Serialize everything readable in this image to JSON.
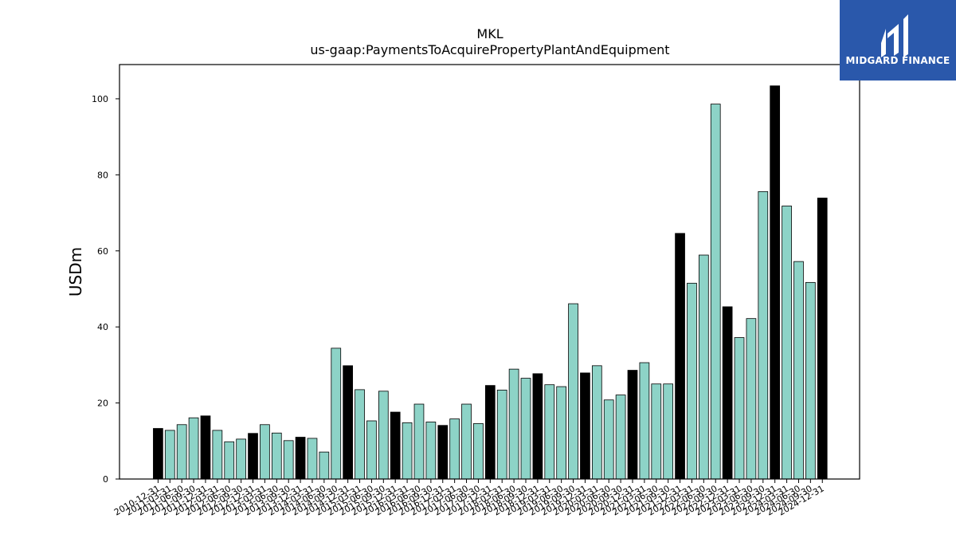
{
  "chart_data": {
    "type": "bar",
    "title": "MKL",
    "subtitle": "us-gaap:PaymentsToAcquirePropertyPlantAndEquipment",
    "xlabel": "",
    "ylabel": "USDm",
    "ylim": [
      0,
      109
    ],
    "yticks": [
      0,
      20,
      40,
      60,
      80,
      100
    ],
    "grid": false,
    "colors": {
      "annual": "#000000",
      "quarterly": "#8dd3c7",
      "edge": "#000000"
    },
    "categories": [
      "2010-12-31",
      "2011-03-31",
      "2011-06-30",
      "2011-09-30",
      "2011-12-31",
      "2012-03-31",
      "2012-06-30",
      "2012-09-30",
      "2012-12-31",
      "2013-03-31",
      "2013-06-30",
      "2013-09-30",
      "2013-12-31",
      "2014-03-31",
      "2014-06-30",
      "2014-09-30",
      "2014-12-31",
      "2015-03-31",
      "2015-06-30",
      "2015-09-30",
      "2015-12-31",
      "2016-03-31",
      "2016-06-30",
      "2016-09-30",
      "2016-12-31",
      "2017-03-31",
      "2017-06-30",
      "2017-09-30",
      "2017-12-31",
      "2018-03-31",
      "2018-06-30",
      "2018-09-30",
      "2018-12-31",
      "2019-03-31",
      "2019-06-30",
      "2019-09-30",
      "2019-12-31",
      "2020-03-31",
      "2020-06-30",
      "2020-09-30",
      "2020-12-31",
      "2021-03-31",
      "2021-06-30",
      "2021-09-30",
      "2021-12-31",
      "2022-03-31",
      "2022-06-30",
      "2022-09-30",
      "2022-12-31",
      "2023-03-31",
      "2023-06-30",
      "2023-09-30",
      "2023-12-31",
      "2024-03-31",
      "2024-06-30",
      "2024-09-30",
      "2024-12-31"
    ],
    "values": [
      13.3,
      12.8,
      14.3,
      16.1,
      16.6,
      12.8,
      9.8,
      10.5,
      12.0,
      14.3,
      12.1,
      10.1,
      11.0,
      10.7,
      7.1,
      34.4,
      29.8,
      23.5,
      15.3,
      23.1,
      17.6,
      14.8,
      19.7,
      15.0,
      14.1,
      15.8,
      19.7,
      14.6,
      24.6,
      23.4,
      28.9,
      26.5,
      27.7,
      24.8,
      24.3,
      46.1,
      27.9,
      29.8,
      20.8,
      22.1,
      28.6,
      30.6,
      25.0,
      25.0,
      64.6,
      51.5,
      58.9,
      98.6,
      45.3,
      37.2,
      42.2,
      75.6,
      103.4,
      71.8,
      57.2,
      51.7,
      73.9
    ],
    "annual": [
      true,
      false,
      false,
      false,
      true,
      false,
      false,
      false,
      true,
      false,
      false,
      false,
      true,
      false,
      false,
      false,
      true,
      false,
      false,
      false,
      true,
      false,
      false,
      false,
      true,
      false,
      false,
      false,
      true,
      false,
      false,
      false,
      true,
      false,
      false,
      false,
      true,
      false,
      false,
      false,
      true,
      false,
      false,
      false,
      true,
      false,
      false,
      false,
      true,
      false,
      false,
      false,
      true,
      false,
      false,
      false,
      true
    ]
  },
  "logo": {
    "text": "MIDGARD FINANCE",
    "icon": "midgard-logo-icon"
  }
}
